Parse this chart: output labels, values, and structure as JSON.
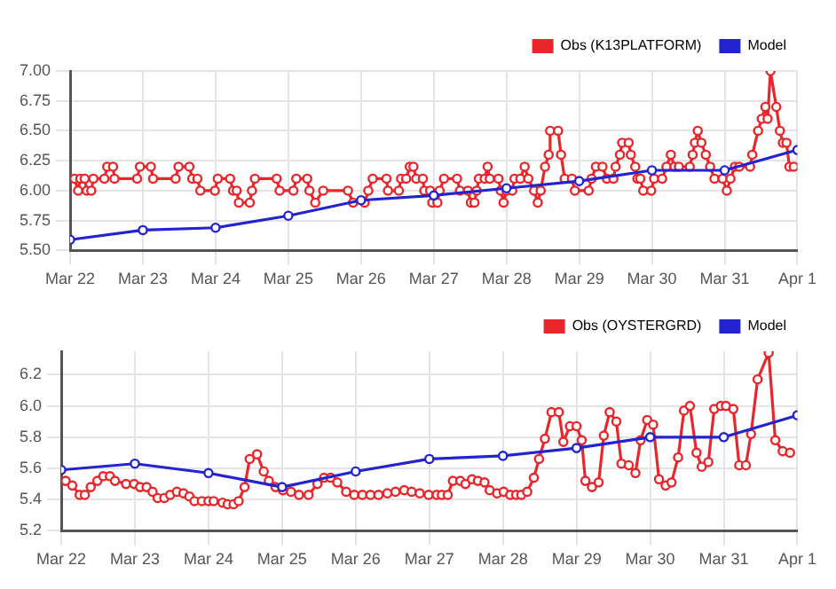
{
  "chart_data": [
    {
      "type": "line",
      "xlim": [
        "--03-22",
        "--04-01"
      ],
      "xticks": [
        {
          "value": "--03-22",
          "label": "Mar 22"
        },
        {
          "value": "--03-23",
          "label": "Mar 23"
        },
        {
          "value": "--03-24",
          "label": "Mar 24"
        },
        {
          "value": "--03-25",
          "label": "Mar 25"
        },
        {
          "value": "--03-26",
          "label": "Mar 26"
        },
        {
          "value": "--03-27",
          "label": "Mar 27"
        },
        {
          "value": "--03-28",
          "label": "Mar 28"
        },
        {
          "value": "--03-29",
          "label": "Mar 29"
        },
        {
          "value": "--03-30",
          "label": "Mar 30"
        },
        {
          "value": "--03-31",
          "label": "Mar 31"
        },
        {
          "value": "--04-01",
          "label": "Apr 1"
        }
      ],
      "ylim": [
        5.5,
        7.0
      ],
      "yticks": [
        {
          "value": 5.5,
          "label": "5.50"
        },
        {
          "value": 5.75,
          "label": "5.75"
        },
        {
          "value": 6.0,
          "label": "6.00"
        },
        {
          "value": 6.25,
          "label": "6.25"
        },
        {
          "value": 6.5,
          "label": "6.50"
        },
        {
          "value": 6.75,
          "label": "6.75"
        },
        {
          "value": 7.0,
          "label": "7.00"
        }
      ],
      "grid": true,
      "legend": "top right",
      "marker": "circle",
      "line_style": "solid",
      "series": [
        {
          "name": "Obs (K13PLATFORM)",
          "color": "#e8262b",
          "x": [
            "--03-22T01:26",
            "--03-22T02:38",
            "--03-22T03:22",
            "--03-22T04:48",
            "--03-22T05:31",
            "--03-22T06:58",
            "--03-22T07:41",
            "--03-22T11:17",
            "--03-22T12:14",
            "--03-22T14:10",
            "--03-22T14:38",
            "--03-22T22:05",
            "--03-22T23:02",
            "--03-23T02:38",
            "--03-23T03:22",
            "--03-23T10:48",
            "--03-23T11:46",
            "--03-23T15:22",
            "--03-23T16:19",
            "--03-23T18:00",
            "--03-23T18:58",
            "--03-23T23:46",
            "--03-24T00:43",
            "--03-24T04:48",
            "--03-24T05:46",
            "--03-24T06:58",
            "--03-24T07:41",
            "--03-24T11:17",
            "--03-24T12:00",
            "--03-24T12:58",
            "--03-24T20:10",
            "--03-24T21:07",
            "--03-25T01:41",
            "--03-25T02:38",
            "--03-25T06:14",
            "--03-25T06:58",
            "--03-25T08:53",
            "--03-25T11:31",
            "--03-25T19:41",
            "--03-25T21:22",
            "--03-26T01:12",
            "--03-26T02:24",
            "--03-26T03:50",
            "--03-26T08:24",
            "--03-26T08:53",
            "--03-26T12:29",
            "--03-26T13:12",
            "--03-26T14:53",
            "--03-26T16:05",
            "--03-26T17:17",
            "--03-26T18:14",
            "--03-26T20:24",
            "--03-26T20:53",
            "--03-26T22:48",
            "--03-26T23:31",
            "--03-27T01:12",
            "--03-27T01:55",
            "--03-27T03:22",
            "--03-27T07:41",
            "--03-27T08:38",
            "--03-27T11:17",
            "--03-27T12:14",
            "--03-27T13:26",
            "--03-27T14:10",
            "--03-27T14:53",
            "--03-27T16:48",
            "--03-27T17:46",
            "--03-27T18:29",
            "--03-27T21:22",
            "--03-27T22:05",
            "--03-27T23:02",
            "--03-28T00:00",
            "--03-28T01:55",
            "--03-28T02:38",
            "--03-28T04:34",
            "--03-28T06:00",
            "--03-28T07:12",
            "--03-28T09:07",
            "--03-28T10:19",
            "--03-28T11:17",
            "--03-28T12:43",
            "--03-28T13:55",
            "--03-28T14:24",
            "--03-28T17:02",
            "--03-28T18:00",
            "--03-28T19:12",
            "--03-28T21:36",
            "--03-28T22:34",
            "--03-29T03:07",
            "--03-29T04:05",
            "--03-29T05:31",
            "--03-29T07:41",
            "--03-29T09:07",
            "--03-29T11:17",
            "--03-29T12:00",
            "--03-29T13:26",
            "--03-29T14:10",
            "--03-29T16:19",
            "--03-29T17:02",
            "--03-29T18:29",
            "--03-29T19:12",
            "--03-29T20:10",
            "--03-29T21:07",
            "--03-29T23:46",
            "--03-30T00:43",
            "--03-30T03:22",
            "--03-30T04:48",
            "--03-30T06:14",
            "--03-30T07:26",
            "--03-30T08:53",
            "--03-30T12:29",
            "--03-30T13:26",
            "--03-30T14:10",
            "--03-30T15:07",
            "--03-30T16:19",
            "--03-30T17:46",
            "--03-30T19:12",
            "--03-30T20:38",
            "--03-30T23:17",
            "--03-31T00:43",
            "--03-31T01:55",
            "--03-31T03:22",
            "--03-31T04:48",
            "--03-31T08:24",
            "--03-31T09:07",
            "--03-31T11:02",
            "--03-31T12:14",
            "--03-31T13:26",
            "--03-31T14:10",
            "--03-31T15:07",
            "--03-31T17:02",
            "--03-31T18:14",
            "--03-31T19:12",
            "--03-31T20:24",
            "--03-31T21:22",
            "--03-31T22:48"
          ],
          "values": [
            6.1,
            6.0,
            6.1,
            6.1,
            6.0,
            6.0,
            6.1,
            6.1,
            6.2,
            6.2,
            6.1,
            6.1,
            6.2,
            6.2,
            6.1,
            6.1,
            6.2,
            6.2,
            6.1,
            6.1,
            6.0,
            6.0,
            6.1,
            6.1,
            6.0,
            6.0,
            5.9,
            5.9,
            6.0,
            6.1,
            6.1,
            6.0,
            6.0,
            6.1,
            6.1,
            6.0,
            5.9,
            6.0,
            6.0,
            5.9,
            5.9,
            6.0,
            6.1,
            6.1,
            6.0,
            6.0,
            6.1,
            6.1,
            6.2,
            6.2,
            6.1,
            6.1,
            6.0,
            6.0,
            5.9,
            5.9,
            6.0,
            6.1,
            6.1,
            6.0,
            6.0,
            5.9,
            5.9,
            6.0,
            6.1,
            6.1,
            6.2,
            6.1,
            6.1,
            6.0,
            5.9,
            6.0,
            6.0,
            6.1,
            6.1,
            6.2,
            6.1,
            6.0,
            5.9,
            6.0,
            6.2,
            6.3,
            6.5,
            6.5,
            6.3,
            6.1,
            6.1,
            6.0,
            6.0,
            6.1,
            6.2,
            6.2,
            6.1,
            6.1,
            6.2,
            6.3,
            6.4,
            6.4,
            6.3,
            6.2,
            6.1,
            6.1,
            6.0,
            6.0,
            6.1,
            6.1,
            6.2,
            6.3,
            6.2,
            6.2,
            6.2,
            6.3,
            6.4,
            6.5,
            6.4,
            6.3,
            6.2,
            6.1,
            6.1,
            6.0,
            6.1,
            6.2,
            6.2,
            6.2,
            6.3,
            6.5,
            6.6,
            6.7,
            6.6,
            7.0,
            6.7,
            6.5,
            6.4,
            6.4,
            6.2,
            6.2
          ]
        },
        {
          "name": "Model",
          "color": "#2323d0",
          "x": [
            "--03-22",
            "--03-23",
            "--03-24",
            "--03-25",
            "--03-26",
            "--03-27",
            "--03-28",
            "--03-29",
            "--03-30",
            "--03-31",
            "--04-01"
          ],
          "values": [
            5.59,
            5.67,
            5.69,
            5.79,
            5.92,
            5.96,
            6.02,
            6.08,
            6.17,
            6.17,
            6.34
          ]
        }
      ]
    },
    {
      "type": "line",
      "xlim": [
        "--03-22",
        "--04-01"
      ],
      "xticks": [
        {
          "value": "--03-22",
          "label": "Mar 22"
        },
        {
          "value": "--03-23",
          "label": "Mar 23"
        },
        {
          "value": "--03-24",
          "label": "Mar 24"
        },
        {
          "value": "--03-25",
          "label": "Mar 25"
        },
        {
          "value": "--03-26",
          "label": "Mar 26"
        },
        {
          "value": "--03-27",
          "label": "Mar 27"
        },
        {
          "value": "--03-28",
          "label": "Mar 28"
        },
        {
          "value": "--03-29",
          "label": "Mar 29"
        },
        {
          "value": "--03-30",
          "label": "Mar 30"
        },
        {
          "value": "--03-31",
          "label": "Mar 31"
        },
        {
          "value": "--04-01",
          "label": "Apr 1"
        }
      ],
      "ylim": [
        5.2,
        6.35
      ],
      "yticks": [
        5.2,
        5.4,
        5.6,
        5.8,
        {
          "value": 6.0,
          "label": "6.0"
        },
        6.2
      ],
      "grid": true,
      "legend": "top right",
      "marker": "circle",
      "line_style": "solid",
      "series": [
        {
          "name": "Obs (OYSTERGRD)",
          "color": "#e8262b",
          "x": [
            "--03-22T01:26",
            "--03-22T03:36",
            "--03-22T06:00",
            "--03-22T07:41",
            "--03-22T09:36",
            "--03-22T11:46",
            "--03-22T13:41",
            "--03-22T15:50",
            "--03-22T17:31",
            "--03-22T21:07",
            "--03-22T23:46",
            "--03-23T01:41",
            "--03-23T03:50",
            "--03-23T05:46",
            "--03-23T07:26",
            "--03-23T09:36",
            "--03-23T11:31",
            "--03-23T13:41",
            "--03-23T15:50",
            "--03-23T17:46",
            "--03-23T19:26",
            "--03-23T21:50",
            "--03-24T00:00",
            "--03-24T01:41",
            "--03-24T04:34",
            "--03-24T06:14",
            "--03-24T08:10",
            "--03-24T09:50",
            "--03-24T11:46",
            "--03-24T13:26",
            "--03-24T15:50",
            "--03-24T18:00",
            "--03-24T19:41",
            "--03-24T21:50",
            "--03-25T00:14",
            "--03-25T02:53",
            "--03-25T05:31",
            "--03-25T08:38",
            "--03-25T11:31",
            "--03-25T13:41",
            "--03-25T15:50",
            "--03-25T18:00",
            "--03-25T20:53",
            "--03-25T23:31",
            "--03-26T02:10",
            "--03-26T04:48",
            "--03-26T07:26",
            "--03-26T10:19",
            "--03-26T12:58",
            "--03-26T15:50",
            "--03-26T18:14",
            "--03-26T20:53",
            "--03-26T23:46",
            "--03-27T02:24",
            "--03-27T04:05",
            "--03-27T06:00",
            "--03-27T07:41",
            "--03-27T10:05",
            "--03-27T11:46",
            "--03-27T13:55",
            "--03-27T15:50",
            "--03-27T18:00",
            "--03-27T19:41",
            "--03-27T22:05",
            "--03-28T00:14",
            "--03-28T02:24",
            "--03-28T04:19",
            "--03-28T06:00",
            "--03-28T07:55",
            "--03-28T10:05",
            "--03-28T11:46",
            "--03-28T13:41",
            "--03-28T15:50",
            "--03-28T18:14",
            "--03-28T19:41",
            "--03-28T21:50",
            "--03-29T00:00",
            "--03-29T01:41",
            "--03-29T02:53",
            "--03-29T05:02",
            "--03-29T07:12",
            "--03-29T08:53",
            "--03-29T10:48",
            "--03-29T12:58",
            "--03-29T14:38",
            "--03-29T17:02",
            "--03-29T19:12",
            "--03-29T20:53",
            "--03-29T23:02",
            "--03-30T00:58",
            "--03-30T02:53",
            "--03-30T05:02",
            "--03-30T06:58",
            "--03-30T09:07",
            "--03-30T11:02",
            "--03-30T12:58",
            "--03-30T15:07",
            "--03-30T16:48",
            "--03-30T18:58",
            "--03-30T20:53",
            "--03-30T23:02",
            "--03-31T00:43",
            "--03-31T03:07",
            "--03-31T05:02",
            "--03-31T07:12",
            "--03-31T08:53",
            "--03-31T11:02",
            "--03-31T14:38",
            "--03-31T16:48",
            "--03-31T19:12",
            "--03-31T21:36"
          ],
          "values": [
            5.52,
            5.49,
            5.43,
            5.43,
            5.48,
            5.52,
            5.55,
            5.55,
            5.52,
            5.5,
            5.5,
            5.48,
            5.48,
            5.45,
            5.41,
            5.41,
            5.43,
            5.45,
            5.44,
            5.42,
            5.39,
            5.39,
            5.39,
            5.39,
            5.38,
            5.37,
            5.37,
            5.39,
            5.48,
            5.66,
            5.69,
            5.58,
            5.52,
            5.48,
            5.46,
            5.45,
            5.43,
            5.43,
            5.5,
            5.54,
            5.54,
            5.51,
            5.45,
            5.43,
            5.43,
            5.43,
            5.43,
            5.44,
            5.45,
            5.46,
            5.45,
            5.44,
            5.43,
            5.43,
            5.43,
            5.43,
            5.52,
            5.52,
            5.5,
            5.53,
            5.52,
            5.51,
            5.46,
            5.44,
            5.45,
            5.43,
            5.43,
            5.43,
            5.45,
            5.54,
            5.66,
            5.79,
            5.96,
            5.96,
            5.77,
            5.87,
            5.87,
            5.78,
            5.52,
            5.48,
            5.51,
            5.81,
            5.96,
            5.9,
            5.63,
            5.62,
            5.57,
            5.78,
            5.91,
            5.88,
            5.53,
            5.49,
            5.51,
            5.67,
            5.97,
            6.0,
            5.7,
            5.61,
            5.64,
            5.98,
            6.0,
            6.0,
            5.98,
            5.62,
            5.62,
            5.82,
            6.17,
            6.34,
            5.78,
            5.71,
            5.7
          ]
        },
        {
          "name": "Model",
          "color": "#2323d0",
          "x": [
            "--03-22",
            "--03-23",
            "--03-24",
            "--03-25",
            "--03-26",
            "--03-27",
            "--03-28",
            "--03-29",
            "--03-30",
            "--03-31",
            "--04-01"
          ],
          "values": [
            5.59,
            5.63,
            5.57,
            5.48,
            5.58,
            5.66,
            5.68,
            5.73,
            5.8,
            5.8,
            5.94
          ]
        }
      ]
    }
  ]
}
